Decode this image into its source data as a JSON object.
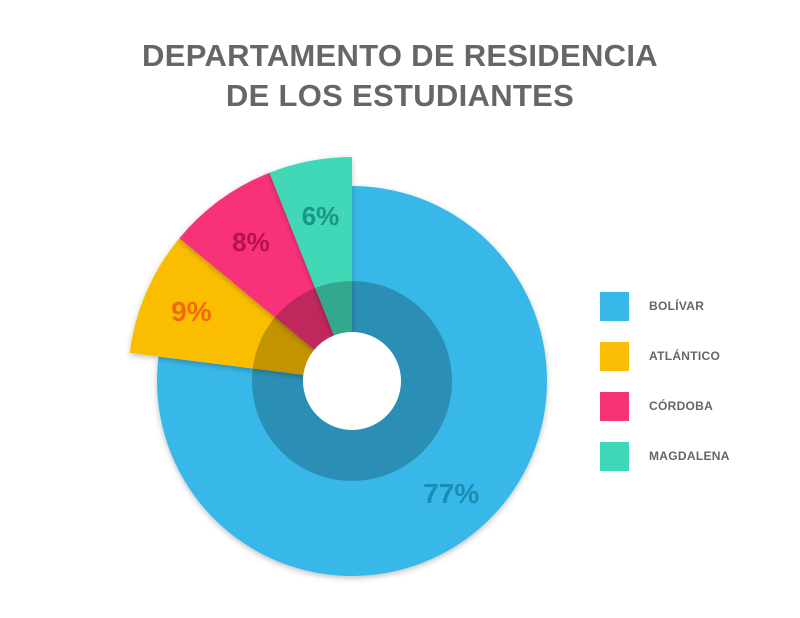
{
  "chart_data": {
    "type": "pie",
    "title_lines": [
      "DEPARTAMENTO DE RESIDENCIA",
      "DE LOS ESTUDIANTES"
    ],
    "categories": [
      "BOLÍVAR",
      "ATLÁNTICO",
      "CÓRDOBA",
      "MAGDALENA"
    ],
    "values": [
      77,
      9,
      8,
      6
    ],
    "labels": [
      "77%",
      "9%",
      "8%",
      "6%"
    ],
    "colors": [
      "#38b8e8",
      "#fbbd06",
      "#f73378",
      "#3fd8b6"
    ],
    "label_colors": [
      "#1b8db5",
      "#f26b0a",
      "#b5124e",
      "#1b9685"
    ],
    "exploded": [
      false,
      true,
      true,
      true
    ],
    "legend_position": "right"
  }
}
